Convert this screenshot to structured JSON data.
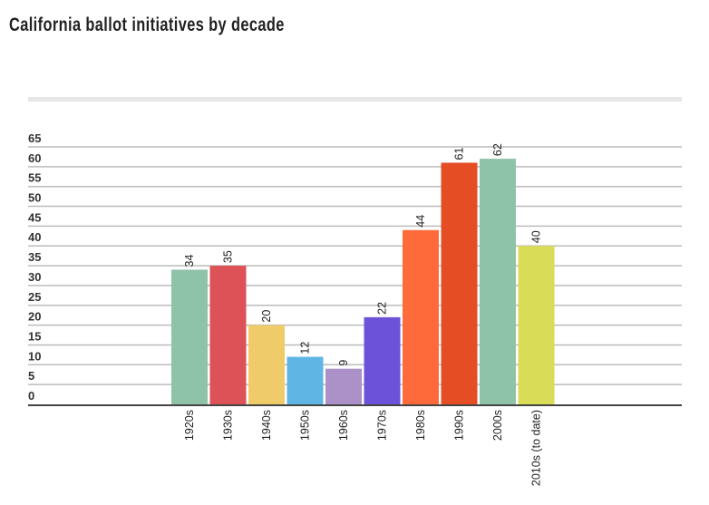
{
  "chart_data": {
    "type": "bar",
    "title": "California ballot initiatives by decade",
    "xlabel": "",
    "ylabel": "",
    "ylim": [
      0,
      65
    ],
    "yticks": [
      0,
      5,
      10,
      15,
      20,
      25,
      30,
      35,
      40,
      45,
      50,
      55,
      60,
      65
    ],
    "grid": true,
    "categories": [
      "1920s",
      "1930s",
      "1940s",
      "1950s",
      "1960s",
      "1970s",
      "1980s",
      "1990s",
      "2000s",
      "2010s (to date)"
    ],
    "values": [
      34,
      35,
      20,
      12,
      9,
      22,
      44,
      61,
      62,
      40
    ],
    "colors": [
      "#8fc3a8",
      "#dd5257",
      "#f0cb6a",
      "#5fb6e5",
      "#ab91c8",
      "#6b52d8",
      "#ff6a3a",
      "#e54e24",
      "#8fc3a8",
      "#d8dc57"
    ]
  }
}
